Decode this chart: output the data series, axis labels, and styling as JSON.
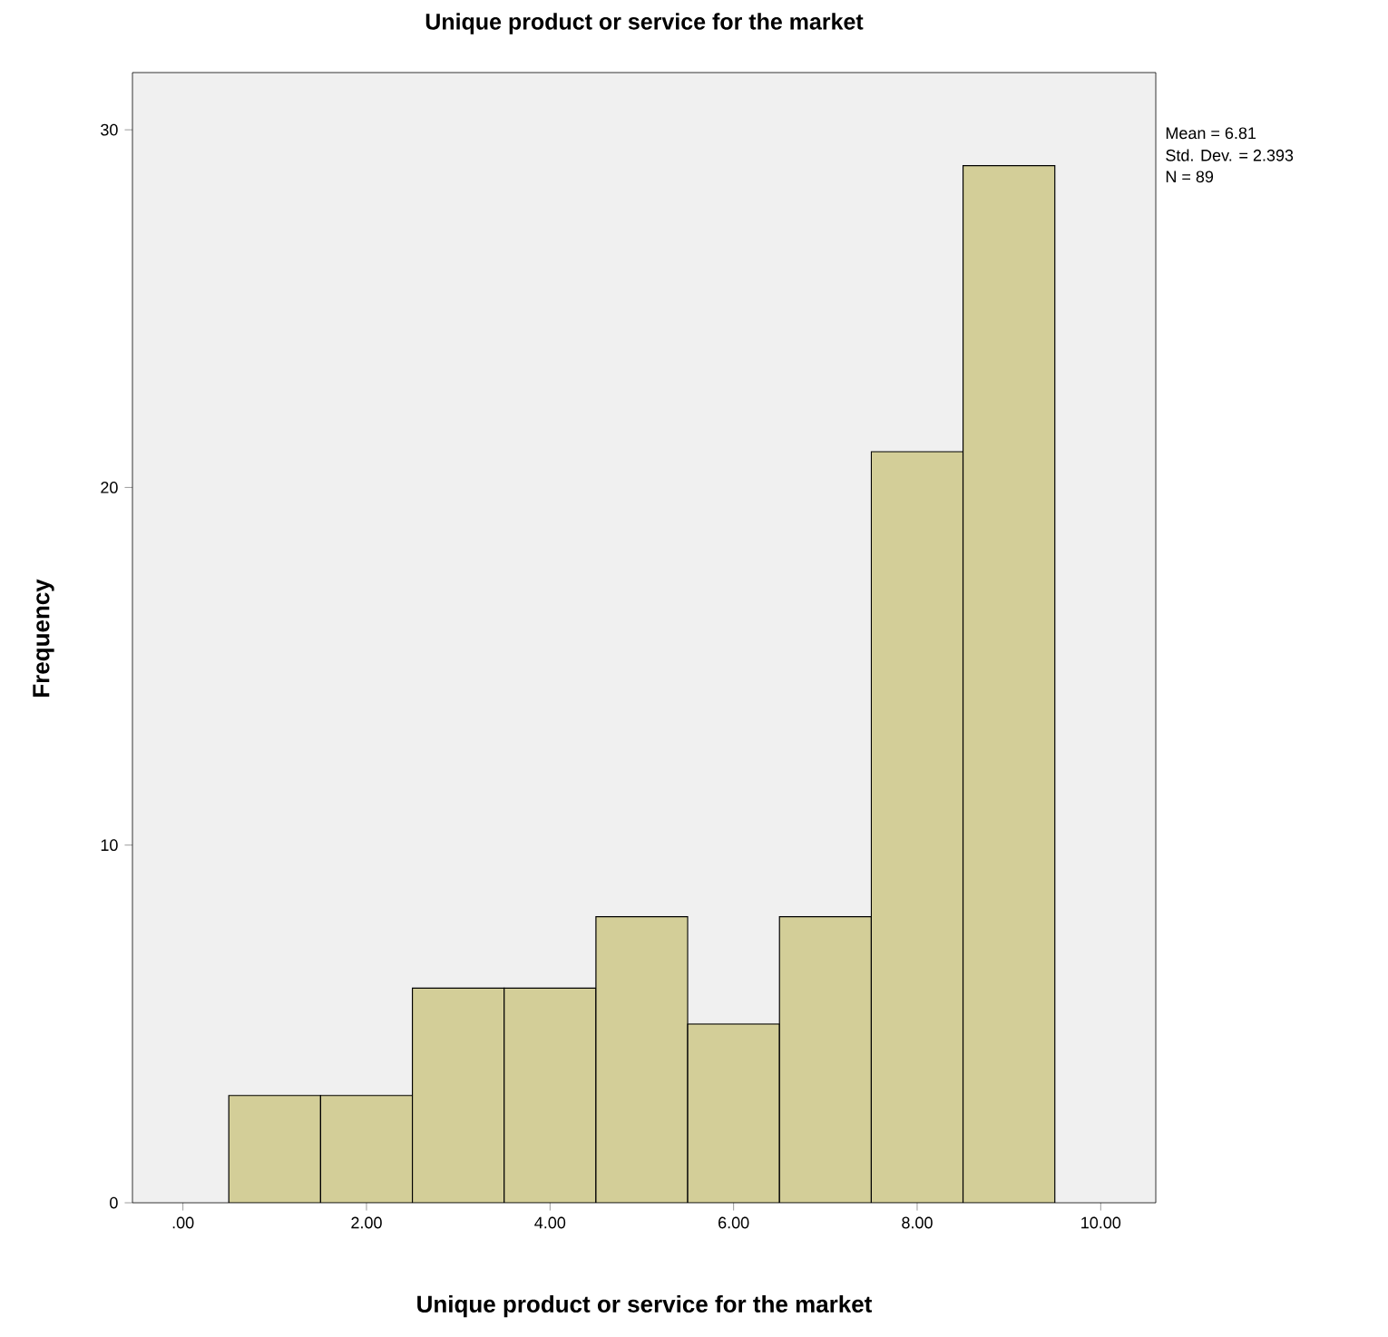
{
  "chart_data": {
    "type": "histogram",
    "title": "Unique product or service for the market",
    "xlabel": "Unique product or service for the market",
    "ylabel": "Frequency",
    "bins": [
      0.5,
      1.5,
      2.5,
      3.5,
      4.5,
      5.5,
      6.5,
      7.5,
      8.5,
      9.5
    ],
    "values": [
      3,
      3,
      6,
      6,
      8,
      5,
      8,
      21,
      29
    ],
    "color": "#d3ce98",
    "xlim": [
      -0.55,
      10.6
    ],
    "ylim": [
      0,
      31.6
    ],
    "xticks": [
      {
        "value": 0,
        "label": ".00"
      },
      {
        "value": 2,
        "label": "2.00"
      },
      {
        "value": 4,
        "label": "4.00"
      },
      {
        "value": 6,
        "label": "6.00"
      },
      {
        "value": 8,
        "label": "8.00"
      },
      {
        "value": 10,
        "label": "10.00"
      }
    ],
    "yticks": [
      0,
      10,
      20,
      30
    ],
    "grid": false,
    "annotations": [
      "Mean = 6.81",
      "Std. Dev. = 2.393",
      "N = 89"
    ]
  }
}
